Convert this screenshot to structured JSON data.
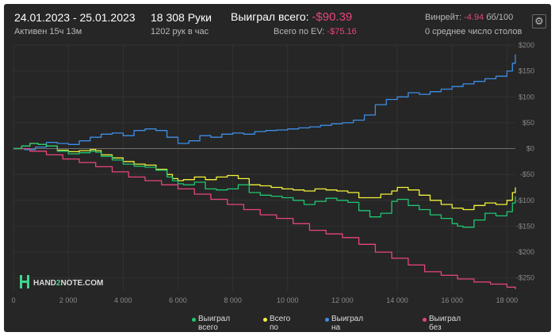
{
  "header": {
    "date_range": "24.01.2023 - 25.01.2023",
    "active_time": "Активен 15ч 13м",
    "hands_count": "18 308 Руки",
    "hands_per_hour": "1202 рук в час",
    "won_total_label": "Выиграл всего:",
    "won_total_value": "-$90.39",
    "ev_total_label": "Всего по EV:",
    "ev_total_value": "-$75.16",
    "winrate_label": "Винрейт:",
    "winrate_value": "-4.94",
    "winrate_unit": "бб/100",
    "avg_tables": "0 среднее число столов"
  },
  "settings_icon": "gear-icon",
  "watermark": {
    "prefix": "HAND",
    "number": "2",
    "suffix": "NOTE.COM"
  },
  "colors": {
    "background": "#262626",
    "grid": "#333333",
    "zero_line": "#707070",
    "green": "#1ec771",
    "yellow": "#f2f23a",
    "blue": "#3d8ee6",
    "red": "#e8457a",
    "negative_text": "#e8457a"
  },
  "chart_data": {
    "type": "line",
    "title": "",
    "xlabel": "",
    "ylabel": "",
    "xlim": [
      0,
      18308
    ],
    "ylim": [
      -275,
      200
    ],
    "x_ticks": [
      0,
      2000,
      4000,
      6000,
      8000,
      10000,
      12000,
      14000,
      16000,
      18000
    ],
    "x_tick_labels": [
      "0",
      "2 000",
      "4 000",
      "6 000",
      "8 000",
      "10 000",
      "12 000",
      "14 000",
      "16 000",
      "18 000"
    ],
    "y_ticks": [
      200,
      150,
      100,
      50,
      0,
      -50,
      -100,
      -150,
      -200,
      -250
    ],
    "y_tick_labels": [
      "$200",
      "$150",
      "$100",
      "$50",
      "$0",
      "-$50",
      "-$100",
      "-$150",
      "-$200",
      "-$250"
    ],
    "grid": true,
    "legend_position": "bottom-right",
    "series": [
      {
        "name": "Выиграл всего",
        "color": "#1ec771",
        "points": [
          [
            0,
            0
          ],
          [
            300,
            5
          ],
          [
            600,
            10
          ],
          [
            900,
            8
          ],
          [
            1200,
            5
          ],
          [
            1600,
            -5
          ],
          [
            2000,
            -10
          ],
          [
            2400,
            -8
          ],
          [
            2800,
            -5
          ],
          [
            3000,
            -7
          ],
          [
            3200,
            -15
          ],
          [
            3600,
            -22
          ],
          [
            4000,
            -30
          ],
          [
            4400,
            -34
          ],
          [
            4800,
            -36
          ],
          [
            5200,
            -42
          ],
          [
            5600,
            -55
          ],
          [
            5800,
            -62
          ],
          [
            6000,
            -68
          ],
          [
            6200,
            -70
          ],
          [
            6600,
            -65
          ],
          [
            7000,
            -78
          ],
          [
            7400,
            -80
          ],
          [
            7800,
            -78
          ],
          [
            8200,
            -70
          ],
          [
            8600,
            -85
          ],
          [
            9000,
            -90
          ],
          [
            9400,
            -92
          ],
          [
            9800,
            -95
          ],
          [
            10200,
            -100
          ],
          [
            10600,
            -108
          ],
          [
            11000,
            -102
          ],
          [
            11400,
            -96
          ],
          [
            11800,
            -100
          ],
          [
            12200,
            -104
          ],
          [
            12600,
            -120
          ],
          [
            13000,
            -132
          ],
          [
            13400,
            -125
          ],
          [
            13800,
            -102
          ],
          [
            14000,
            -98
          ],
          [
            14400,
            -110
          ],
          [
            14800,
            -118
          ],
          [
            15200,
            -128
          ],
          [
            15600,
            -135
          ],
          [
            16000,
            -145
          ],
          [
            16200,
            -150
          ],
          [
            16400,
            -152
          ],
          [
            16800,
            -138
          ],
          [
            17200,
            -125
          ],
          [
            17600,
            -130
          ],
          [
            18000,
            -122
          ],
          [
            18200,
            -105
          ],
          [
            18308,
            -92
          ]
        ]
      },
      {
        "name": "Всего по EV",
        "color": "#f2f23a",
        "points": [
          [
            0,
            0
          ],
          [
            300,
            5
          ],
          [
            600,
            10
          ],
          [
            900,
            8
          ],
          [
            1200,
            5
          ],
          [
            1600,
            -3
          ],
          [
            2000,
            -6
          ],
          [
            2400,
            -4
          ],
          [
            2800,
            -2
          ],
          [
            3000,
            -4
          ],
          [
            3200,
            -12
          ],
          [
            3600,
            -18
          ],
          [
            4000,
            -25
          ],
          [
            4400,
            -30
          ],
          [
            4800,
            -32
          ],
          [
            5200,
            -40
          ],
          [
            5600,
            -50
          ],
          [
            5800,
            -58
          ],
          [
            6000,
            -62
          ],
          [
            6200,
            -60
          ],
          [
            6600,
            -55
          ],
          [
            7000,
            -60
          ],
          [
            7400,
            -55
          ],
          [
            7800,
            -52
          ],
          [
            8200,
            -58
          ],
          [
            8600,
            -70
          ],
          [
            9000,
            -72
          ],
          [
            9400,
            -75
          ],
          [
            9800,
            -78
          ],
          [
            10200,
            -80
          ],
          [
            10600,
            -82
          ],
          [
            11000,
            -78
          ],
          [
            11400,
            -80
          ],
          [
            11800,
            -82
          ],
          [
            12200,
            -85
          ],
          [
            12600,
            -95
          ],
          [
            13000,
            -95
          ],
          [
            13400,
            -88
          ],
          [
            13800,
            -82
          ],
          [
            14000,
            -75
          ],
          [
            14400,
            -80
          ],
          [
            14800,
            -90
          ],
          [
            15200,
            -100
          ],
          [
            15600,
            -108
          ],
          [
            16000,
            -115
          ],
          [
            16400,
            -118
          ],
          [
            16800,
            -110
          ],
          [
            17200,
            -105
          ],
          [
            17600,
            -108
          ],
          [
            18000,
            -100
          ],
          [
            18200,
            -85
          ],
          [
            18308,
            -75
          ]
        ]
      },
      {
        "name": "Выиграл на шоудауне",
        "color": "#3d8ee6",
        "points": [
          [
            0,
            0
          ],
          [
            400,
            -2
          ],
          [
            800,
            3
          ],
          [
            1200,
            12
          ],
          [
            1600,
            10
          ],
          [
            2000,
            8
          ],
          [
            2400,
            15
          ],
          [
            2800,
            22
          ],
          [
            3200,
            28
          ],
          [
            3600,
            30
          ],
          [
            4000,
            25
          ],
          [
            4400,
            35
          ],
          [
            4800,
            38
          ],
          [
            5200,
            35
          ],
          [
            5600,
            22
          ],
          [
            6000,
            10
          ],
          [
            6400,
            15
          ],
          [
            6800,
            25
          ],
          [
            7200,
            22
          ],
          [
            7600,
            28
          ],
          [
            8000,
            30
          ],
          [
            8400,
            28
          ],
          [
            8800,
            33
          ],
          [
            9200,
            35
          ],
          [
            9600,
            36
          ],
          [
            10000,
            38
          ],
          [
            10400,
            40
          ],
          [
            10800,
            42
          ],
          [
            11200,
            45
          ],
          [
            11600,
            48
          ],
          [
            12000,
            50
          ],
          [
            12400,
            55
          ],
          [
            12800,
            65
          ],
          [
            13200,
            85
          ],
          [
            13600,
            95
          ],
          [
            14000,
            100
          ],
          [
            14400,
            108
          ],
          [
            14800,
            105
          ],
          [
            15200,
            110
          ],
          [
            15600,
            115
          ],
          [
            16000,
            120
          ],
          [
            16400,
            125
          ],
          [
            16800,
            130
          ],
          [
            17200,
            135
          ],
          [
            17600,
            140
          ],
          [
            18000,
            150
          ],
          [
            18200,
            165
          ],
          [
            18308,
            182
          ]
        ]
      },
      {
        "name": "Выиграл без шоудауна",
        "color": "#e8457a",
        "points": [
          [
            0,
            0
          ],
          [
            600,
            -5
          ],
          [
            1200,
            -12
          ],
          [
            1800,
            -20
          ],
          [
            2400,
            -27
          ],
          [
            3000,
            -35
          ],
          [
            3600,
            -45
          ],
          [
            4200,
            -55
          ],
          [
            4800,
            -62
          ],
          [
            5400,
            -70
          ],
          [
            6000,
            -78
          ],
          [
            6600,
            -88
          ],
          [
            7200,
            -98
          ],
          [
            7800,
            -108
          ],
          [
            8400,
            -118
          ],
          [
            9000,
            -128
          ],
          [
            9600,
            -135
          ],
          [
            10200,
            -145
          ],
          [
            10800,
            -158
          ],
          [
            11400,
            -165
          ],
          [
            12000,
            -172
          ],
          [
            12600,
            -185
          ],
          [
            13200,
            -200
          ],
          [
            13800,
            -212
          ],
          [
            14400,
            -225
          ],
          [
            15000,
            -238
          ],
          [
            15600,
            -245
          ],
          [
            16200,
            -252
          ],
          [
            16800,
            -258
          ],
          [
            17400,
            -262
          ],
          [
            18000,
            -268
          ],
          [
            18308,
            -272
          ]
        ]
      }
    ]
  }
}
